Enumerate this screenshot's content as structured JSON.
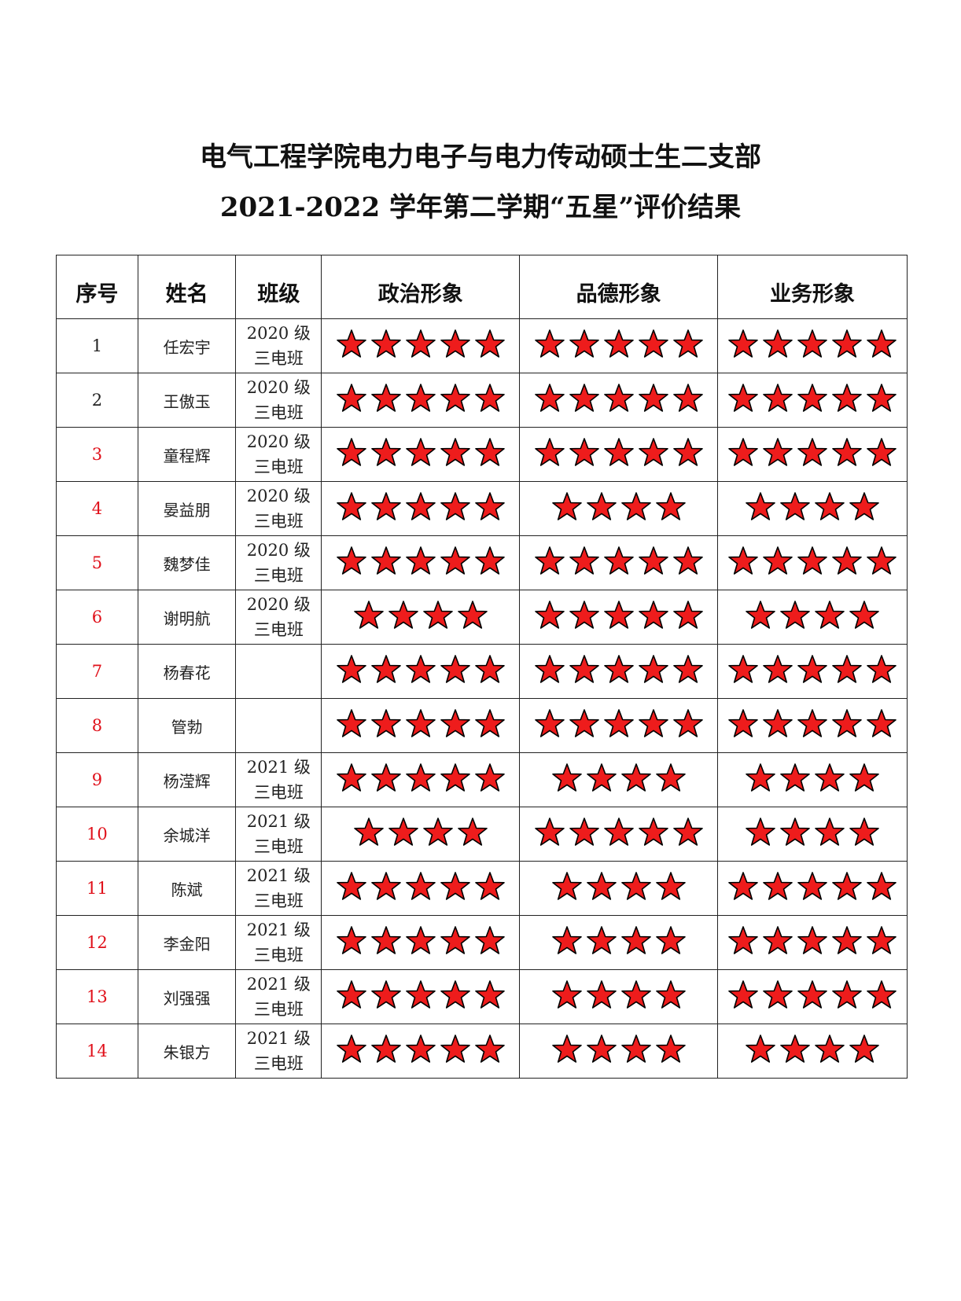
{
  "title_line1": "电气工程学院电力电子与电力传动硕士生二支部",
  "title_line2": "2021-2022 学年第二学期“五星”评价结果",
  "headers": [
    "序号",
    "姓名",
    "班级",
    "政治形象",
    "品德形象",
    "业务形象"
  ],
  "star_color": "#ee1c1c",
  "rows": [
    {
      "no": "1",
      "name": "任宏宇",
      "class1": "2020 级",
      "class2": "三电班",
      "no_red": false,
      "stars": [
        5,
        5,
        5
      ]
    },
    {
      "no": "2",
      "name": "王傲玉",
      "class1": "2020 级",
      "class2": "三电班",
      "no_red": false,
      "stars": [
        5,
        5,
        5
      ]
    },
    {
      "no": "3",
      "name": "童程辉",
      "class1": "2020 级",
      "class2": "三电班",
      "no_red": true,
      "stars": [
        5,
        5,
        5
      ]
    },
    {
      "no": "4",
      "name": "晏益朋",
      "class1": "2020 级",
      "class2": "三电班",
      "no_red": true,
      "stars": [
        5,
        4,
        4
      ]
    },
    {
      "no": "5",
      "name": "魏梦佳",
      "class1": "2020 级",
      "class2": "三电班",
      "no_red": true,
      "stars": [
        5,
        5,
        5
      ]
    },
    {
      "no": "6",
      "name": "谢明航",
      "class1": "2020 级",
      "class2": "三电班",
      "no_red": true,
      "stars": [
        4,
        5,
        4
      ]
    },
    {
      "no": "7",
      "name": "杨春花",
      "class1": "",
      "class2": "",
      "no_red": true,
      "stars": [
        5,
        5,
        5
      ]
    },
    {
      "no": "8",
      "name": "管勃",
      "class1": "",
      "class2": "",
      "no_red": true,
      "stars": [
        5,
        5,
        5
      ]
    },
    {
      "no": "9",
      "name": "杨滢辉",
      "class1": "2021 级",
      "class2": "三电班",
      "no_red": true,
      "stars": [
        5,
        4,
        4
      ]
    },
    {
      "no": "10",
      "name": "余城洋",
      "class1": "2021 级",
      "class2": "三电班",
      "no_red": true,
      "stars": [
        4,
        5,
        4
      ]
    },
    {
      "no": "11",
      "name": "陈斌",
      "class1": "2021 级",
      "class2": "三电班",
      "no_red": true,
      "stars": [
        5,
        4,
        5
      ]
    },
    {
      "no": "12",
      "name": "李金阳",
      "class1": "2021 级",
      "class2": "三电班",
      "no_red": true,
      "stars": [
        5,
        4,
        5
      ]
    },
    {
      "no": "13",
      "name": "刘强强",
      "class1": "2021 级",
      "class2": "三电班",
      "no_red": true,
      "stars": [
        5,
        4,
        5
      ]
    },
    {
      "no": "14",
      "name": "朱银方",
      "class1": "2021 级",
      "class2": "三电班",
      "no_red": true,
      "stars": [
        5,
        4,
        4
      ]
    }
  ]
}
